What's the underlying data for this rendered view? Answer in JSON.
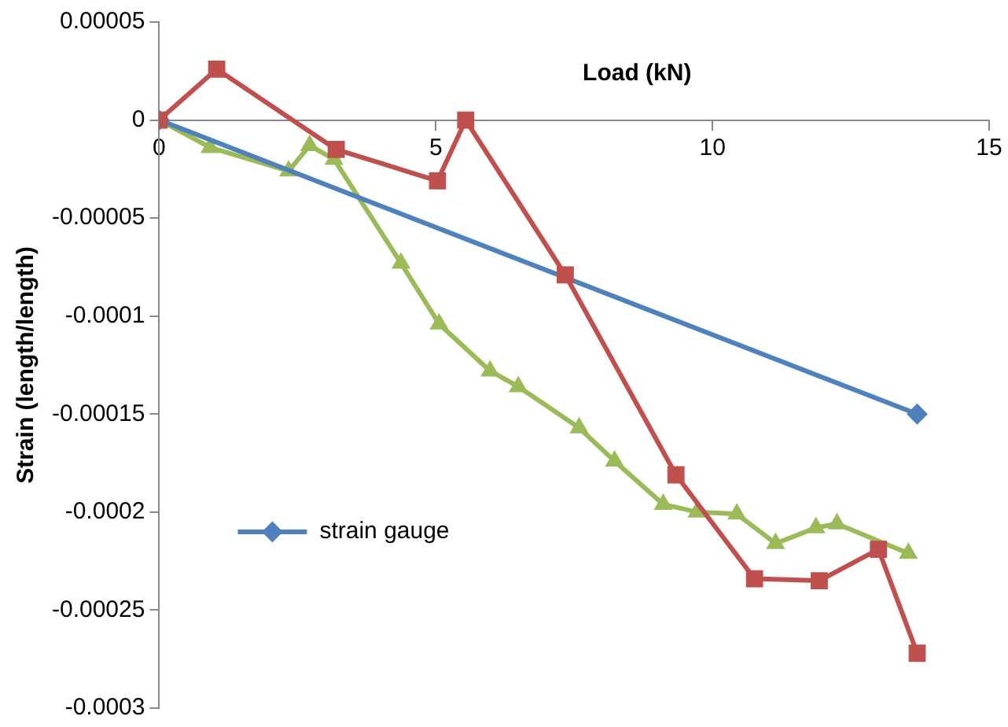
{
  "chart_data": {
    "type": "line",
    "xlabel": "Load (kN)",
    "ylabel": "Strain (length/length)",
    "xlim": [
      0,
      15
    ],
    "xticks": [
      0,
      5,
      10,
      15
    ],
    "ylim": [
      -0.0003,
      5e-05
    ],
    "yticks": [
      {
        "value": 5e-05,
        "label": "0.00005"
      },
      0,
      {
        "value": -5e-05,
        "label": "-0.00005"
      },
      -0.0001,
      -0.00015,
      -0.0002,
      -0.00025,
      -0.0003
    ],
    "grid": false,
    "legend": "bottom left",
    "line_style": "solid",
    "series": [
      {
        "color": "#c0504d",
        "marker": "square",
        "x": [
          0,
          1.04,
          3.2,
          5.03,
          5.54,
          7.34,
          9.34,
          10.76,
          11.93,
          13.0,
          13.7
        ],
        "values": [
          0,
          2.6e-05,
          -1.5e-05,
          -3.1e-05,
          0,
          -7.9e-05,
          -0.000181,
          -0.000234,
          -0.000235,
          -0.000219,
          -0.000272
        ]
      },
      {
        "name": "strain gauge",
        "color": "#4f81bd",
        "marker": "diamond",
        "x": [
          0,
          13.7
        ],
        "values": [
          0,
          -0.00015
        ]
      },
      {
        "color": "#9bbb59",
        "marker": "triangle",
        "x": [
          0,
          0.92,
          2.34,
          2.72,
          3.16,
          4.37,
          5.06,
          5.98,
          6.49,
          7.59,
          8.23,
          9.11,
          9.72,
          10.44,
          11.14,
          11.87,
          12.25,
          13.54
        ],
        "values": [
          0,
          -1.4e-05,
          -2.6e-05,
          -1.3e-05,
          -2e-05,
          -7.3e-05,
          -0.000104,
          -0.000128,
          -0.000136,
          -0.000157,
          -0.000174,
          -0.000196,
          -0.0002,
          -0.000201,
          -0.000216,
          -0.000208,
          -0.000206,
          -0.000221
        ]
      }
    ]
  }
}
